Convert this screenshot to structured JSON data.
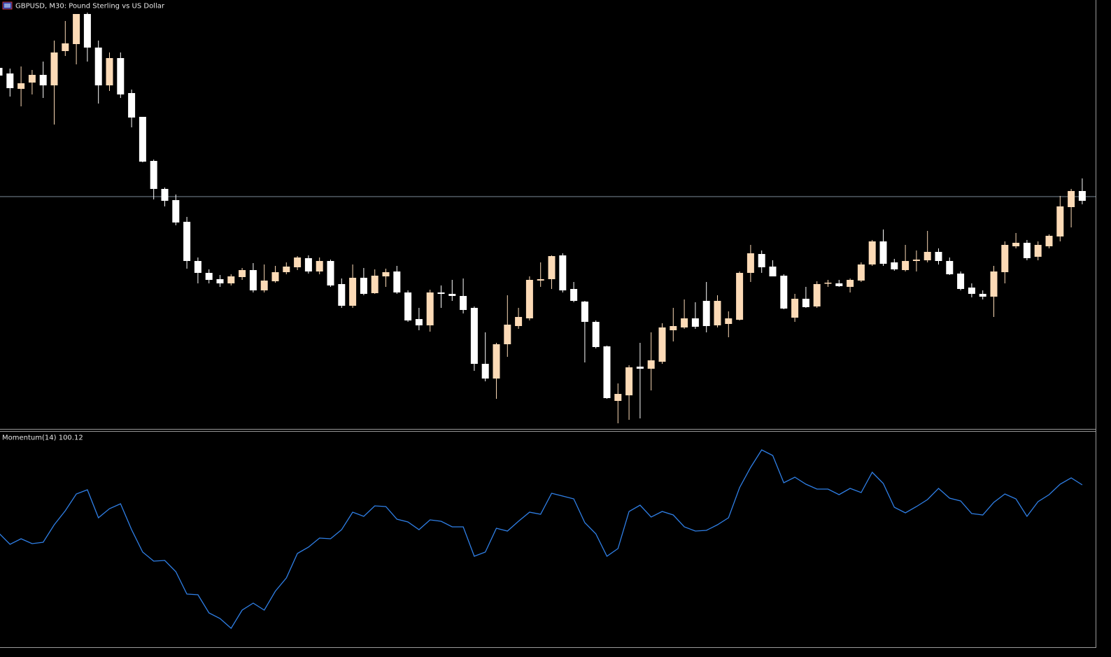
{
  "chart_data": [
    {
      "type": "candlestick",
      "title": "GBPUSD, M30:  Pound Sterling vs US Dollar",
      "up_color": "#fcdab6",
      "down_color": "#ffffff",
      "bid_line": 719,
      "bid_color": "#7d8c99",
      "ylim": [
        388,
        1000
      ],
      "open": [
        903,
        895,
        873,
        882,
        893,
        878,
        927,
        937,
        980,
        932,
        878,
        917,
        867,
        833,
        770,
        730,
        714,
        683,
        627,
        610,
        601,
        595,
        604,
        614,
        585,
        598,
        611,
        618,
        631,
        612,
        627,
        594,
        563,
        603,
        581,
        605,
        612,
        582,
        544,
        535,
        582,
        580,
        577,
        560,
        480,
        459,
        508,
        534,
        545,
        599,
        601,
        635,
        587,
        569,
        540,
        505,
        427,
        435,
        476,
        473,
        483,
        528,
        532,
        545,
        570,
        535,
        537,
        543,
        610,
        637,
        619,
        606,
        546,
        573,
        562,
        595,
        595,
        590,
        599,
        622,
        655,
        625,
        614,
        627,
        628,
        640,
        627,
        609,
        589,
        580,
        576,
        611,
        648,
        653,
        633,
        648,
        662,
        704,
        727
      ],
      "high": [
        905,
        902,
        905,
        900,
        912,
        942,
        970,
        980,
        982,
        942,
        925,
        925,
        872,
        833,
        772,
        732,
        722,
        690,
        632,
        615,
        607,
        608,
        617,
        624,
        622,
        620,
        625,
        634,
        635,
        632,
        629,
        602,
        622,
        617,
        615,
        616,
        620,
        585,
        560,
        586,
        592,
        600,
        602,
        562,
        525,
        510,
        578,
        560,
        605,
        625,
        635,
        638,
        597,
        570,
        542,
        506,
        452,
        478,
        510,
        525,
        538,
        560,
        572,
        568,
        597,
        578,
        555,
        612,
        650,
        642,
        628,
        608,
        580,
        590,
        598,
        600,
        600,
        602,
        625,
        657,
        672,
        630,
        650,
        642,
        670,
        645,
        632,
        612,
        595,
        585,
        620,
        655,
        667,
        657,
        655,
        665,
        720,
        730,
        745
      ],
      "low": [
        890,
        862,
        848,
        865,
        860,
        822,
        920,
        908,
        912,
        852,
        870,
        860,
        818,
        768,
        715,
        705,
        678,
        616,
        595,
        595,
        590,
        592,
        600,
        582,
        582,
        596,
        608,
        614,
        609,
        608,
        590,
        560,
        560,
        578,
        580,
        590,
        580,
        540,
        528,
        526,
        560,
        570,
        552,
        470,
        455,
        430,
        490,
        530,
        542,
        590,
        587,
        582,
        568,
        482,
        502,
        430,
        395,
        400,
        402,
        442,
        480,
        512,
        530,
        530,
        525,
        532,
        518,
        542,
        597,
        610,
        605,
        558,
        540,
        560,
        560,
        590,
        590,
        582,
        597,
        620,
        620,
        613,
        612,
        612,
        625,
        622,
        607,
        585,
        575,
        572,
        547,
        595,
        645,
        628,
        628,
        645,
        655,
        675,
        708
      ],
      "close": [
        892,
        874,
        881,
        893,
        878,
        925,
        938,
        980,
        932,
        878,
        917,
        865,
        832,
        769,
        730,
        713,
        682,
        627,
        610,
        600,
        595,
        605,
        614,
        585,
        599,
        611,
        619,
        632,
        612,
        627,
        592,
        563,
        603,
        580,
        606,
        611,
        582,
        542,
        535,
        582,
        580,
        577,
        557,
        480,
        459,
        508,
        536,
        547,
        600,
        601,
        634,
        585,
        570,
        540,
        504,
        431,
        437,
        475,
        473,
        485,
        532,
        534,
        545,
        533,
        534,
        570,
        545,
        610,
        638,
        618,
        605,
        559,
        573,
        561,
        594,
        596,
        591,
        600,
        622,
        655,
        623,
        615,
        627,
        629,
        640,
        627,
        608,
        587,
        580,
        576,
        612,
        650,
        653,
        631,
        650,
        663,
        705,
        727,
        713
      ]
    },
    {
      "type": "line",
      "name": "Momentum(14)",
      "current": 100.12,
      "color": "#2f7fe6",
      "ylim": [
        97.8,
        100.88
      ],
      "values": [
        99.43,
        99.27,
        99.35,
        99.28,
        99.3,
        99.55,
        99.75,
        99.99,
        100.05,
        99.65,
        99.78,
        99.85,
        99.48,
        99.16,
        99.03,
        99.04,
        98.88,
        98.56,
        98.55,
        98.29,
        98.21,
        98.07,
        98.33,
        98.43,
        98.33,
        98.6,
        98.79,
        99.14,
        99.23,
        99.36,
        99.35,
        99.48,
        99.73,
        99.67,
        99.82,
        99.81,
        99.63,
        99.59,
        99.48,
        99.62,
        99.6,
        99.52,
        99.52,
        99.1,
        99.16,
        99.5,
        99.46,
        99.6,
        99.73,
        99.7,
        100.0,
        99.96,
        99.92,
        99.58,
        99.42,
        99.1,
        99.21,
        99.74,
        99.83,
        99.66,
        99.74,
        99.69,
        99.52,
        99.46,
        99.47,
        99.55,
        99.65,
        100.08,
        100.37,
        100.62,
        100.54,
        100.15,
        100.23,
        100.13,
        100.06,
        100.06,
        99.98,
        100.07,
        100.01,
        100.3,
        100.14,
        99.8,
        99.72,
        99.81,
        99.91,
        100.07,
        99.93,
        99.89,
        99.71,
        99.69,
        99.87,
        99.99,
        99.92,
        99.67,
        99.88,
        99.98,
        100.13,
        100.22,
        100.12
      ]
    }
  ]
}
